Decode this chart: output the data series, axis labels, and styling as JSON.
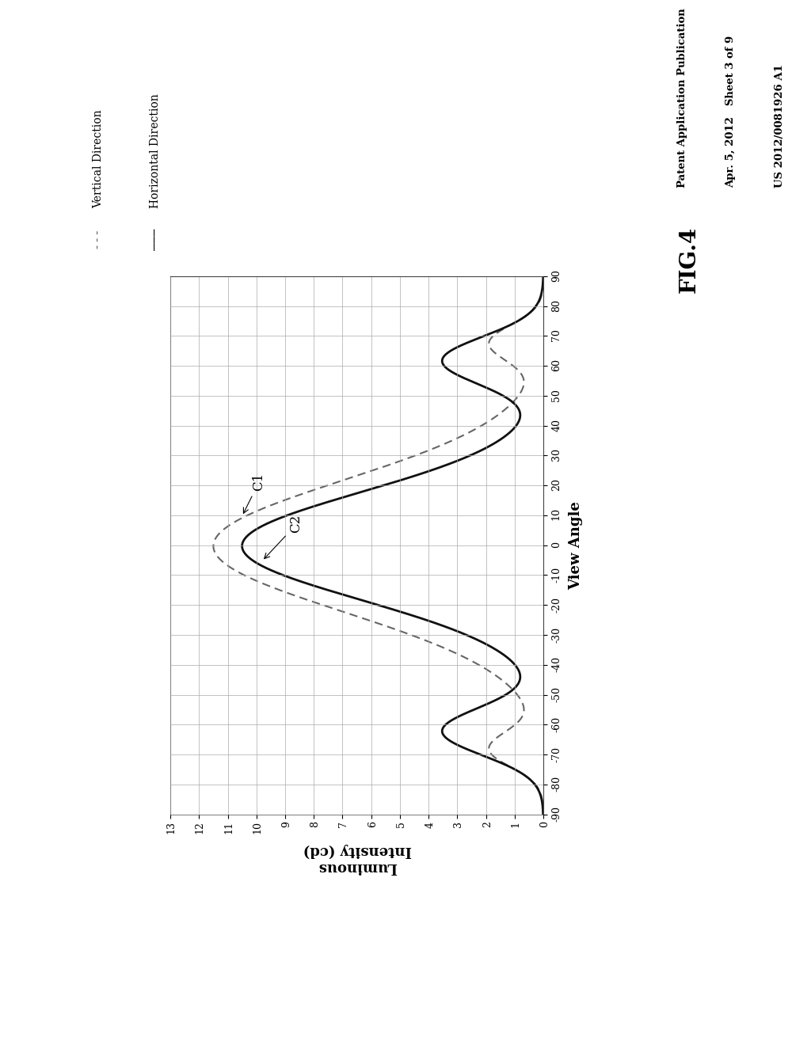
{
  "header_left": "Patent Application Publication",
  "header_center": "Apr. 5, 2012   Sheet 3 of 9",
  "header_right": "US 2012/0081926 A1",
  "fig_label": "FIG.4",
  "view_angle_label": "View Angle",
  "x_label_line1": "Luminous",
  "x_label_line2": "Intensity (cd)",
  "legend_dashed_label": "Vertical Direction",
  "legend_solid_label": "Horizontal Direction",
  "background_color": "#ffffff",
  "grid_color": "#aaaaaa",
  "line_color_solid": "#111111",
  "line_color_dashed": "#666666",
  "header_color": "#111111"
}
